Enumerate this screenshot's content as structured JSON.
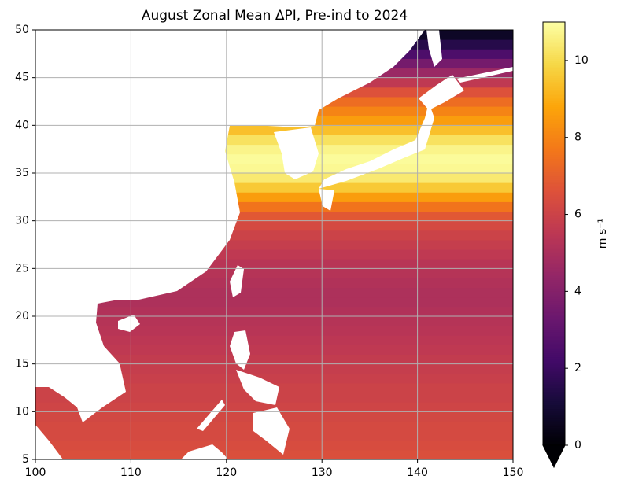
{
  "chart_data": {
    "type": "heatmap",
    "title": "August Zonal Mean ΔPI, Pre-ind to 2024",
    "colormap": "inferno",
    "lat_bins": [
      5,
      6,
      7,
      8,
      9,
      10,
      11,
      12,
      13,
      14,
      15,
      16,
      17,
      18,
      19,
      20,
      21,
      22,
      23,
      24,
      25,
      26,
      27,
      28,
      29,
      30,
      31,
      32,
      33,
      34,
      35,
      36,
      37,
      38,
      39,
      40,
      41,
      42,
      43,
      44,
      45,
      46,
      47,
      48,
      49,
      50
    ],
    "values": [
      6.5,
      6.4,
      6.3,
      6.3,
      6.2,
      6.1,
      6.0,
      6.0,
      5.9,
      5.8,
      5.7,
      5.6,
      5.5,
      5.4,
      5.3,
      5.2,
      5.1,
      5.1,
      5.2,
      5.3,
      5.4,
      5.6,
      5.8,
      6.0,
      6.3,
      6.8,
      7.6,
      8.6,
      9.6,
      10.4,
      10.8,
      10.9,
      10.7,
      10.2,
      9.4,
      8.6,
      8.0,
      7.4,
      6.6,
      5.6,
      4.6,
      3.6,
      2.5,
      1.5,
      0.7
    ],
    "xlim": [
      100,
      150
    ],
    "xticks": [
      100,
      110,
      120,
      130,
      140,
      150
    ],
    "ylim": [
      5,
      50
    ],
    "yticks": [
      5,
      10,
      15,
      20,
      25,
      30,
      35,
      40,
      45,
      50
    ],
    "grid": true,
    "clim": [
      0,
      11
    ],
    "cticks": [
      0,
      2,
      4,
      6,
      8,
      10
    ],
    "colorbar_label": "m s⁻¹"
  }
}
